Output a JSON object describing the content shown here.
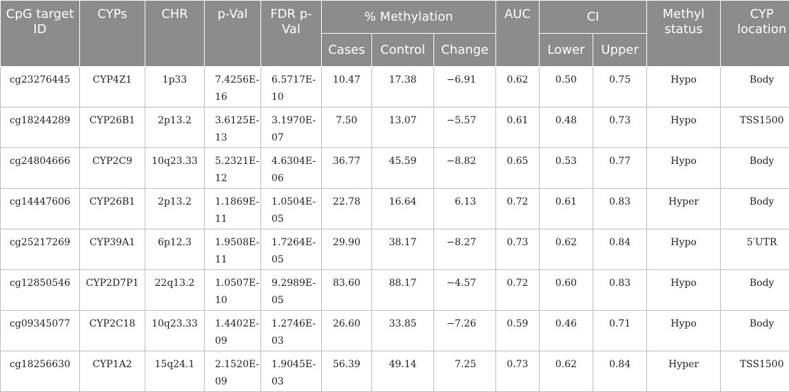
{
  "headers": {
    "cpg": "CpG target ID",
    "cyps": "CYPs",
    "chr": "CHR",
    "pval": "p-Val",
    "fdr": "FDR p-Val",
    "methylation": "% Methylation",
    "cases": "Cases",
    "control": "Control",
    "change": "Change",
    "auc": "AUC",
    "ci": "CI",
    "lower": "Lower",
    "upper": "Upper",
    "status": "Methyl status",
    "location": "CYP location"
  },
  "rows": [
    {
      "cpg": "cg23276445",
      "cyp": "CYP4Z1",
      "chr": "1p33",
      "pval_a": "7.4256E-",
      "pval_b": "16",
      "fdr_a": "6.5717E-",
      "fdr_b": "10",
      "cases": "10.47",
      "control": "17.38",
      "change": "−6.91",
      "auc": "0.62",
      "lower": "0.50",
      "upper": "0.75",
      "status": "Hypo",
      "location": "Body"
    },
    {
      "cpg": "cg18244289",
      "cyp": "CYP26B1",
      "chr": "2p13.2",
      "pval_a": "3.6125E-",
      "pval_b": "13",
      "fdr_a": "3.1970E-",
      "fdr_b": "07",
      "cases": "7.50",
      "control": "13.07",
      "change": "−5.57",
      "auc": "0.61",
      "lower": "0.48",
      "upper": "0.73",
      "status": "Hypo",
      "location": "TSS1500"
    },
    {
      "cpg": "cg24804666",
      "cyp": "CYP2C9",
      "chr": "10q23.33",
      "pval_a": "5.2321E-",
      "pval_b": "12",
      "fdr_a": "4.6304E-",
      "fdr_b": "06",
      "cases": "36.77",
      "control": "45.59",
      "change": "−8.82",
      "auc": "0.65",
      "lower": "0.53",
      "upper": "0.77",
      "status": "Hypo",
      "location": "Body"
    },
    {
      "cpg": "cg14447606",
      "cyp": "CYP26B1",
      "chr": "2p13.2",
      "pval_a": "1.1869E-",
      "pval_b": "11",
      "fdr_a": "1.0504E-",
      "fdr_b": "05",
      "cases": "22.78",
      "control": "16.64",
      "change": "6.13",
      "auc": "0.72",
      "lower": "0.61",
      "upper": "0.83",
      "status": "Hyper",
      "location": "Body"
    },
    {
      "cpg": "cg25217269",
      "cyp": "CYP39A1",
      "chr": "6p12.3",
      "pval_a": "1.9508E-",
      "pval_b": "11",
      "fdr_a": "1.7264E-",
      "fdr_b": "05",
      "cases": "29.90",
      "control": "38.17",
      "change": "−8.27",
      "auc": "0.73",
      "lower": "0.62",
      "upper": "0.84",
      "status": "Hypo",
      "location": "5′UTR"
    },
    {
      "cpg": "cg12850546",
      "cyp": "CYP2D7P1",
      "chr": "22q13.2",
      "pval_a": "1.0507E-",
      "pval_b": "10",
      "fdr_a": "9.2989E-",
      "fdr_b": "05",
      "cases": "83.60",
      "control": "88.17",
      "change": "−4.57",
      "auc": "0.72",
      "lower": "0.60",
      "upper": "0.83",
      "status": "Hypo",
      "location": "Body"
    },
    {
      "cpg": "cg09345077",
      "cyp": "CYP2C18",
      "chr": "10q23.33",
      "pval_a": "1.4402E-",
      "pval_b": "09",
      "fdr_a": "1.2746E-",
      "fdr_b": "03",
      "cases": "26.60",
      "control": "33.85",
      "change": "−7.26",
      "auc": "0.59",
      "lower": "0.46",
      "upper": "0.71",
      "status": "Hypo",
      "location": "Body"
    },
    {
      "cpg": "cg18256630",
      "cyp": "CYP1A2",
      "chr": "15q24.1",
      "pval_a": "2.1520E-",
      "pval_b": "09",
      "fdr_a": "1.9045E-",
      "fdr_b": "03",
      "cases": "56.39",
      "control": "49.14",
      "change": "7.25",
      "auc": "0.73",
      "lower": "0.62",
      "upper": "0.84",
      "status": "Hyper",
      "location": "TSS1500"
    }
  ]
}
